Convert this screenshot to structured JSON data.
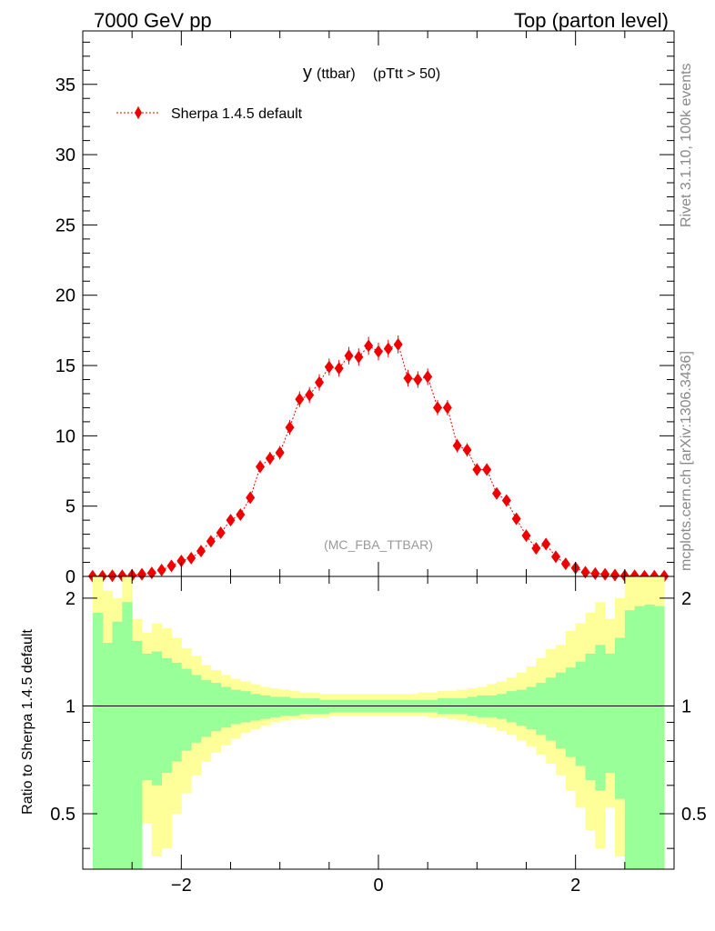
{
  "header": {
    "energy_label": "7000 GeV pp",
    "process_label": "Top (parton level)"
  },
  "side_labels": {
    "rivet": "Rivet 3.1.10,  100k events",
    "mcplots": "mcplots.cern.ch [arXiv:1306.3436]"
  },
  "chart_data": [
    {
      "type": "scatter",
      "title_main": "y",
      "title_sub": "(ttbar)",
      "title_cut": "(pTtt > 50)",
      "watermark": "(MC_FBA_TTBAR)",
      "legend": {
        "placement": "top-left",
        "label": "Sherpa 1.4.5 default"
      },
      "xlim": [
        -3.0,
        3.0
      ],
      "ylim": [
        0,
        38.8
      ],
      "yticks": [
        0,
        5,
        10,
        15,
        20,
        25,
        30,
        35
      ],
      "tick_labels": [
        "0",
        "5",
        "10",
        "15",
        "20",
        "25",
        "30",
        "35"
      ],
      "marker_color": "#ee0000",
      "series": [
        {
          "name": "Sherpa 1.4.5 default",
          "x": [
            -2.9,
            -2.8,
            -2.7,
            -2.6,
            -2.5,
            -2.4,
            -2.3,
            -2.2,
            -2.1,
            -2.0,
            -1.9,
            -1.8,
            -1.7,
            -1.6,
            -1.5,
            -1.4,
            -1.3,
            -1.2,
            -1.1,
            -1.0,
            -0.9,
            -0.8,
            -0.7,
            -0.6,
            -0.5,
            -0.4,
            -0.3,
            -0.2,
            -0.1,
            0.0,
            0.1,
            0.2,
            0.3,
            0.4,
            0.5,
            0.6,
            0.7,
            0.8,
            0.9,
            1.0,
            1.1,
            1.2,
            1.3,
            1.4,
            1.5,
            1.6,
            1.7,
            1.8,
            1.9,
            2.0,
            2.1,
            2.2,
            2.3,
            2.4,
            2.5,
            2.6,
            2.7,
            2.8,
            2.9
          ],
          "y": [
            0.02,
            0.02,
            0.05,
            0.05,
            0.08,
            0.15,
            0.25,
            0.45,
            0.75,
            1.1,
            1.3,
            1.8,
            2.5,
            3.1,
            4.0,
            4.4,
            5.6,
            7.8,
            8.4,
            8.8,
            10.6,
            12.6,
            12.9,
            13.8,
            14.9,
            14.8,
            15.7,
            15.6,
            16.4,
            16.0,
            16.2,
            16.5,
            14.1,
            14.0,
            14.2,
            12.0,
            12.0,
            9.3,
            9.0,
            7.6,
            7.6,
            5.9,
            5.4,
            4.1,
            2.9,
            2.0,
            2.3,
            1.4,
            0.9,
            0.6,
            0.3,
            0.2,
            0.15,
            0.1,
            0.05,
            0.05,
            0.02,
            0.02,
            0.02
          ],
          "yerr": [
            0.05,
            0.05,
            0.05,
            0.05,
            0.05,
            0.06,
            0.08,
            0.1,
            0.12,
            0.15,
            0.16,
            0.2,
            0.24,
            0.28,
            0.32,
            0.34,
            0.38,
            0.45,
            0.46,
            0.48,
            0.52,
            0.56,
            0.57,
            0.58,
            0.6,
            0.6,
            0.62,
            0.62,
            0.64,
            0.63,
            0.63,
            0.64,
            0.59,
            0.59,
            0.59,
            0.54,
            0.54,
            0.48,
            0.47,
            0.43,
            0.43,
            0.38,
            0.36,
            0.31,
            0.27,
            0.22,
            0.24,
            0.18,
            0.14,
            0.12,
            0.08,
            0.07,
            0.06,
            0.05,
            0.05,
            0.05,
            0.05,
            0.05,
            0.05
          ]
        }
      ]
    },
    {
      "type": "area",
      "ylabel": "Ratio to Sherpa 1.4.5 default",
      "xlim": [
        -3.0,
        3.0
      ],
      "ylim": [
        0.35,
        2.3
      ],
      "log_y": true,
      "yticks": [
        0.5,
        1,
        2
      ],
      "tick_labels": [
        "0.5",
        "1",
        "2"
      ],
      "xticks": [
        -2,
        0,
        2
      ],
      "xtick_labels": [
        "−2",
        "0",
        "2"
      ],
      "reference_line": 1,
      "colors": {
        "inner_band": "#99ff99",
        "outer_band": "#ffff99"
      },
      "bin_edges": [
        -2.9,
        -2.8,
        -2.7,
        -2.6,
        -2.5,
        -2.4,
        -2.3,
        -2.2,
        -2.1,
        -2.0,
        -1.9,
        -1.8,
        -1.7,
        -1.6,
        -1.5,
        -1.4,
        -1.3,
        -1.2,
        -1.1,
        -1.0,
        -0.9,
        -0.8,
        -0.7,
        -0.6,
        -0.5,
        -0.4,
        -0.3,
        -0.2,
        -0.1,
        0.0,
        0.1,
        0.2,
        0.3,
        0.4,
        0.5,
        0.6,
        0.7,
        0.8,
        0.9,
        1.0,
        1.1,
        1.2,
        1.3,
        1.4,
        1.5,
        1.6,
        1.7,
        1.8,
        1.9,
        2.0,
        2.1,
        2.2,
        2.3,
        2.4,
        2.5,
        2.6,
        2.7,
        2.8,
        2.9
      ],
      "outer_upper": [
        3.0,
        2.1,
        2.0,
        3.0,
        1.75,
        1.6,
        1.7,
        1.65,
        1.55,
        1.45,
        1.38,
        1.3,
        1.26,
        1.22,
        1.19,
        1.17,
        1.15,
        1.13,
        1.12,
        1.11,
        1.1,
        1.09,
        1.09,
        1.08,
        1.08,
        1.08,
        1.08,
        1.08,
        1.08,
        1.08,
        1.08,
        1.08,
        1.08,
        1.09,
        1.09,
        1.1,
        1.1,
        1.11,
        1.12,
        1.13,
        1.15,
        1.17,
        1.2,
        1.24,
        1.29,
        1.36,
        1.44,
        1.48,
        1.62,
        1.7,
        1.82,
        1.95,
        1.75,
        2.0,
        3.0,
        3.0,
        3.0,
        3.0
      ],
      "outer_lower": [
        0.1,
        0.1,
        0.53,
        0.1,
        0.1,
        0.47,
        0.38,
        0.4,
        0.5,
        0.57,
        0.64,
        0.7,
        0.74,
        0.78,
        0.81,
        0.84,
        0.86,
        0.88,
        0.9,
        0.91,
        0.92,
        0.92,
        0.93,
        0.93,
        0.94,
        0.94,
        0.94,
        0.94,
        0.94,
        0.94,
        0.94,
        0.94,
        0.94,
        0.94,
        0.93,
        0.93,
        0.92,
        0.91,
        0.9,
        0.89,
        0.87,
        0.85,
        0.83,
        0.8,
        0.77,
        0.73,
        0.69,
        0.64,
        0.58,
        0.52,
        0.45,
        0.4,
        0.52,
        0.38,
        0.1,
        0.1,
        0.1,
        0.1
      ],
      "inner_upper": [
        1.82,
        1.5,
        1.72,
        1.95,
        1.52,
        1.4,
        1.42,
        1.36,
        1.32,
        1.27,
        1.22,
        1.18,
        1.16,
        1.13,
        1.11,
        1.1,
        1.08,
        1.07,
        1.06,
        1.06,
        1.05,
        1.05,
        1.05,
        1.04,
        1.04,
        1.04,
        1.04,
        1.04,
        1.04,
        1.04,
        1.04,
        1.04,
        1.04,
        1.04,
        1.04,
        1.05,
        1.05,
        1.05,
        1.06,
        1.07,
        1.07,
        1.08,
        1.1,
        1.11,
        1.13,
        1.16,
        1.2,
        1.24,
        1.28,
        1.33,
        1.4,
        1.48,
        1.4,
        1.55,
        1.85,
        1.9,
        1.92,
        1.9
      ],
      "inner_lower": [
        0.1,
        0.1,
        0.1,
        0.1,
        0.1,
        0.62,
        0.6,
        0.65,
        0.7,
        0.75,
        0.79,
        0.82,
        0.85,
        0.87,
        0.89,
        0.9,
        0.91,
        0.92,
        0.93,
        0.94,
        0.94,
        0.95,
        0.95,
        0.95,
        0.96,
        0.96,
        0.96,
        0.96,
        0.96,
        0.96,
        0.96,
        0.96,
        0.96,
        0.96,
        0.96,
        0.95,
        0.95,
        0.95,
        0.94,
        0.93,
        0.93,
        0.92,
        0.9,
        0.88,
        0.86,
        0.83,
        0.8,
        0.76,
        0.72,
        0.68,
        0.62,
        0.58,
        0.65,
        0.55,
        0.1,
        0.1,
        0.1,
        0.1
      ]
    }
  ]
}
